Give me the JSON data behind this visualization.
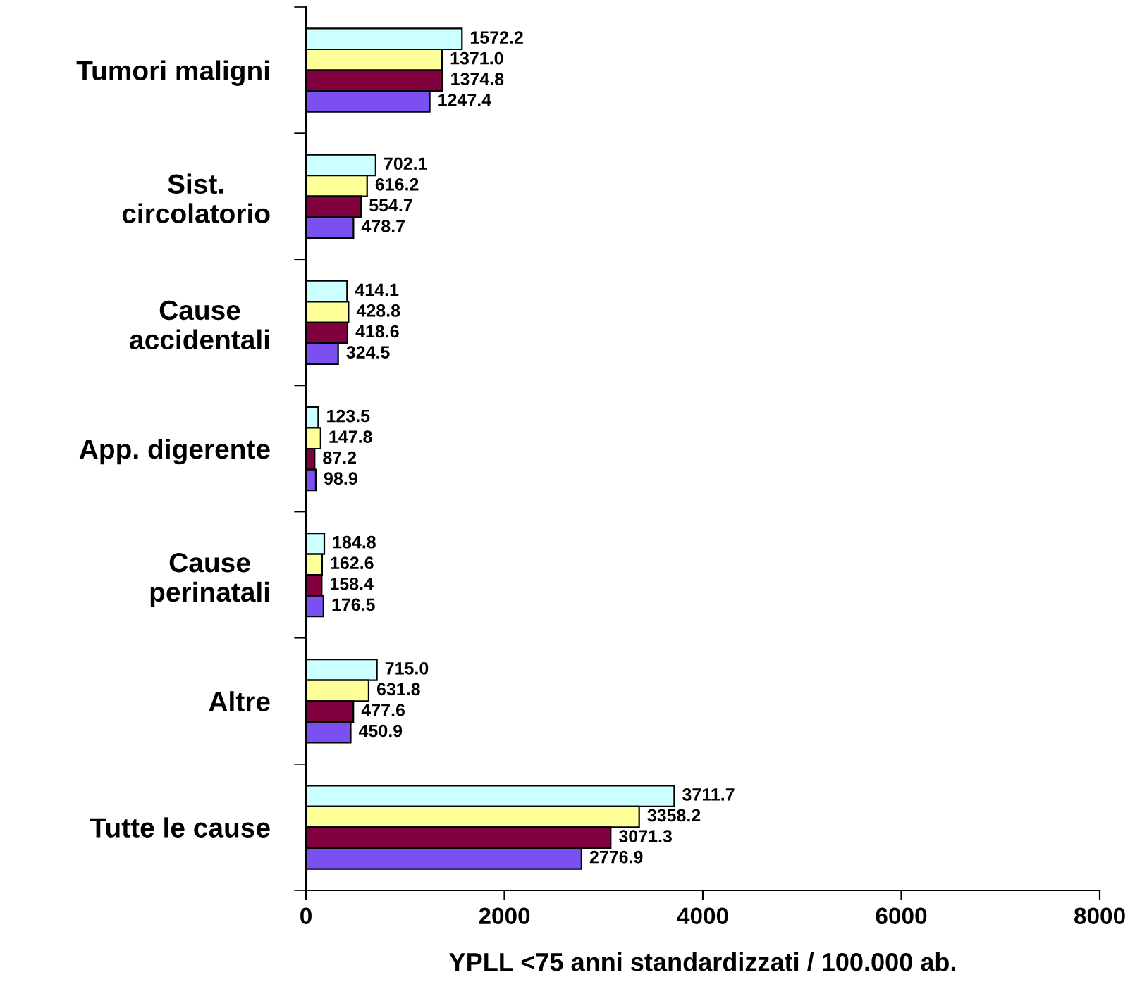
{
  "chart_data": {
    "type": "bar",
    "orientation": "horizontal",
    "xlabel": "YPLL <75 anni standardizzati / 100.000 ab.",
    "categories": [
      "Tumori maligni",
      "Sist.\ncircolatorio",
      "Cause\naccidentali",
      "App. digerente",
      "Cause\nperinatali",
      "Altre",
      "Tutte le cause"
    ],
    "series": [
      {
        "color": "#ccffff",
        "values": [
          1572.2,
          702.1,
          414.1,
          123.5,
          184.8,
          715.0,
          3711.7
        ]
      },
      {
        "color": "#ffff99",
        "values": [
          1371.0,
          616.2,
          428.8,
          147.8,
          162.6,
          631.8,
          3358.2
        ]
      },
      {
        "color": "#800040",
        "values": [
          1374.8,
          554.7,
          418.6,
          87.2,
          158.4,
          477.6,
          3071.3
        ]
      },
      {
        "color": "#7b4ff0",
        "values": [
          1247.4,
          478.7,
          324.5,
          98.9,
          176.5,
          450.9,
          2776.9
        ]
      }
    ],
    "value_labels": [
      [
        "1572.2",
        "702.1",
        "414.1",
        "123.5",
        "184.8",
        "715.0",
        "3711.7"
      ],
      [
        "1371.0",
        "616.2",
        "428.8",
        "147.8",
        "162.6",
        "631.8",
        "3358.2"
      ],
      [
        "1374.8",
        "554.7",
        "418.6",
        "87.2",
        "158.4",
        "477.6",
        "3071.3"
      ],
      [
        "1247.4",
        "478.7",
        "324.5",
        "98.9",
        "176.5",
        "450.9",
        "2776.9"
      ]
    ],
    "xlim": [
      0,
      8000
    ],
    "xticks": [
      0,
      2000,
      4000,
      6000,
      8000
    ],
    "grid": false,
    "legend": false
  }
}
